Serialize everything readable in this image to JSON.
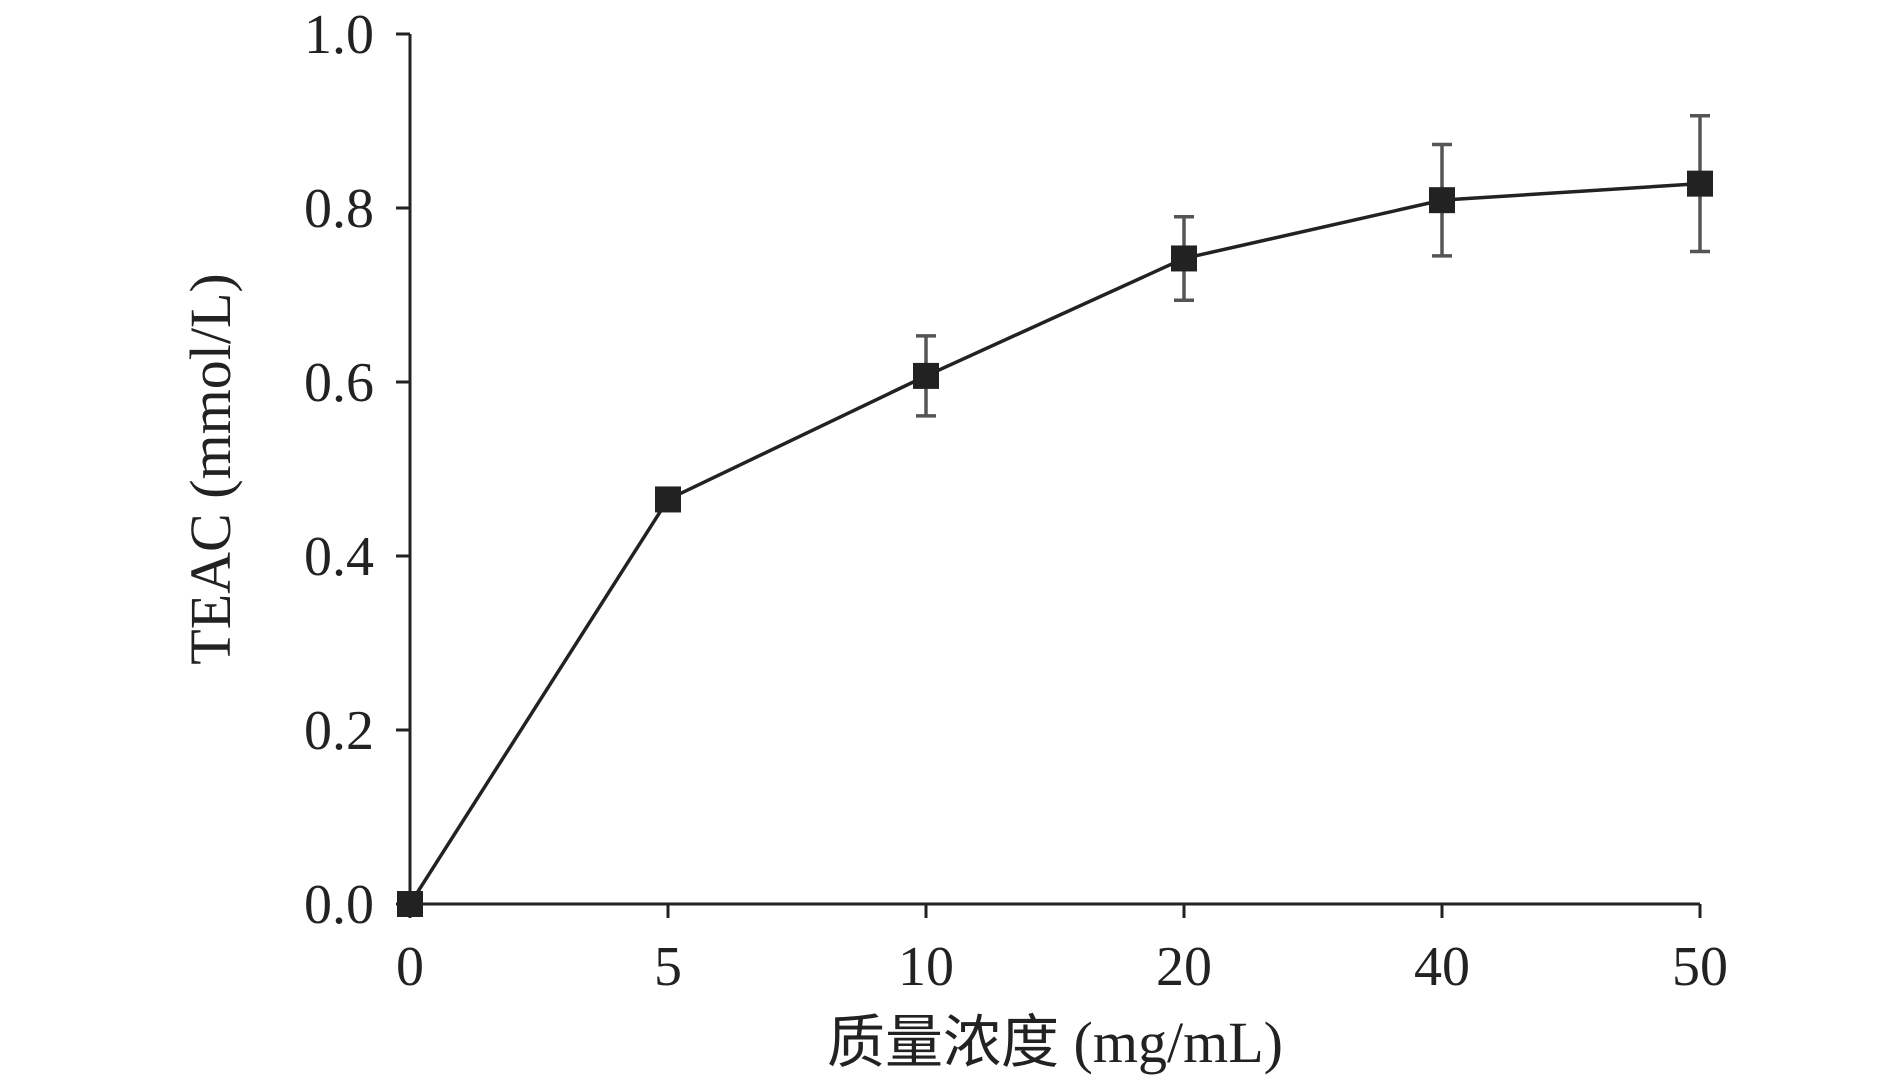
{
  "chart_data": {
    "type": "line",
    "title": "",
    "xlabel": "质量浓度 (mg/mL)",
    "ylabel": "TEAC (mmol/L)",
    "x_scale": "categorical",
    "categories": [
      "0",
      "5",
      "10",
      "20",
      "40",
      "50"
    ],
    "ylim": [
      0,
      1.0
    ],
    "yticks": [
      "0.0",
      "0.2",
      "0.4",
      "0.6",
      "0.8",
      "1.0"
    ],
    "grid": false,
    "legend": "none",
    "series": [
      {
        "values": [
          0.0,
          0.465,
          0.607,
          0.742,
          0.809,
          0.828
        ],
        "error": [
          0.0,
          0.0,
          0.046,
          0.048,
          0.064,
          0.078
        ],
        "marker": "square",
        "color": "#222222",
        "error_color": "#555555"
      }
    ]
  }
}
